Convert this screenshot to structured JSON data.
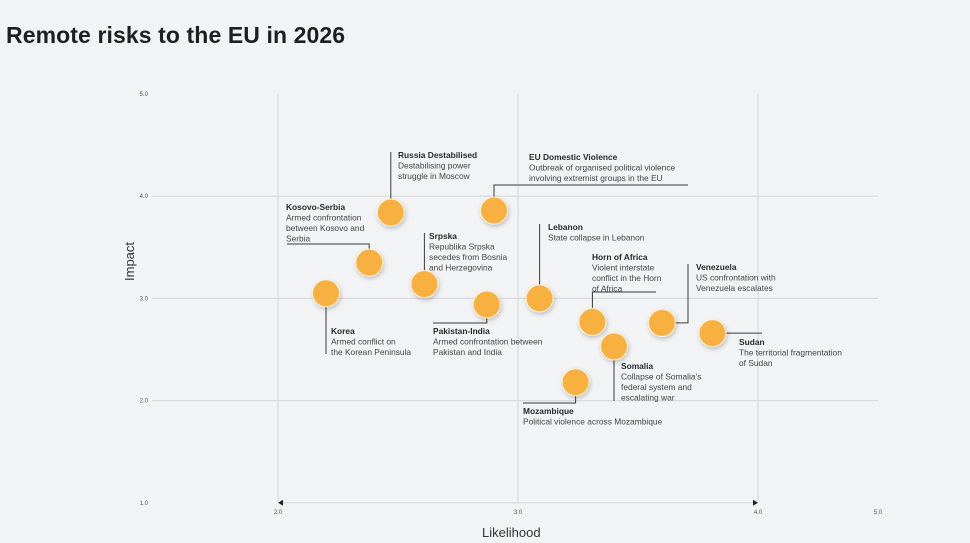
{
  "page": {
    "title": "Remote risks to the EU in 2026"
  },
  "chart_data": {
    "type": "scatter",
    "title": "Remote risks to the EU in 2026",
    "xlabel": "Likelihood",
    "ylabel": "Impact",
    "xlim": [
      2.0,
      5.0
    ],
    "ylim": [
      1.0,
      5.0
    ],
    "x_ticks": [
      "2.0",
      "3.0",
      "4.0",
      "5.0"
    ],
    "y_ticks": [
      "1.0",
      "2.0",
      "3.0",
      "4.0",
      "5.0"
    ],
    "grid": true,
    "legend": "none",
    "marker_color": "#f8b03f",
    "points": [
      {
        "name": "Russia Destabilised",
        "desc": [
          "Destabilising power",
          "struggle in Moscow"
        ],
        "x": 2.47,
        "y": 3.84
      },
      {
        "name": "EU Domestic Violence",
        "desc": [
          "Outbreak of organised political violence",
          "involving extremist groups in the EU"
        ],
        "x": 2.9,
        "y": 3.86
      },
      {
        "name": "Kosovo-Serbia",
        "desc": [
          "Armed confrontation",
          "between Kosovo and",
          "Serbia"
        ],
        "x": 2.38,
        "y": 3.35
      },
      {
        "name": "Srpska",
        "desc": [
          "Republika Srpska",
          "secedes from Bosnia",
          "and Herzegovina"
        ],
        "x": 2.61,
        "y": 3.14
      },
      {
        "name": "Lebanon",
        "desc": [
          "State collapse in Lebanon"
        ],
        "x": 3.09,
        "y": 3.0
      },
      {
        "name": "Korea",
        "desc": [
          "Armed conflict on",
          "the Korean Peninsula"
        ],
        "x": 2.2,
        "y": 3.05
      },
      {
        "name": "Pakistan-India",
        "desc": [
          "Armed confrontation between",
          "Pakistan and India"
        ],
        "x": 2.87,
        "y": 2.94
      },
      {
        "name": "Horn of Africa",
        "desc": [
          "Violent interstate",
          "conflict in the Horn",
          "of Africa"
        ],
        "x": 3.31,
        "y": 2.77
      },
      {
        "name": "Venezuela",
        "desc": [
          "US confrontation with",
          "Venezuela escalates"
        ],
        "x": 3.6,
        "y": 2.76
      },
      {
        "name": "Sudan",
        "desc": [
          "The territorial fragmentation",
          "of Sudan"
        ],
        "x": 3.81,
        "y": 2.66
      },
      {
        "name": "Somalia",
        "desc": [
          "Collapse of Somalia's",
          "federal system and",
          "escalating war"
        ],
        "x": 3.4,
        "y": 2.53
      },
      {
        "name": "Mozambique",
        "desc": [
          "Political violence across Mozambique"
        ],
        "x": 3.24,
        "y": 2.18
      }
    ]
  }
}
